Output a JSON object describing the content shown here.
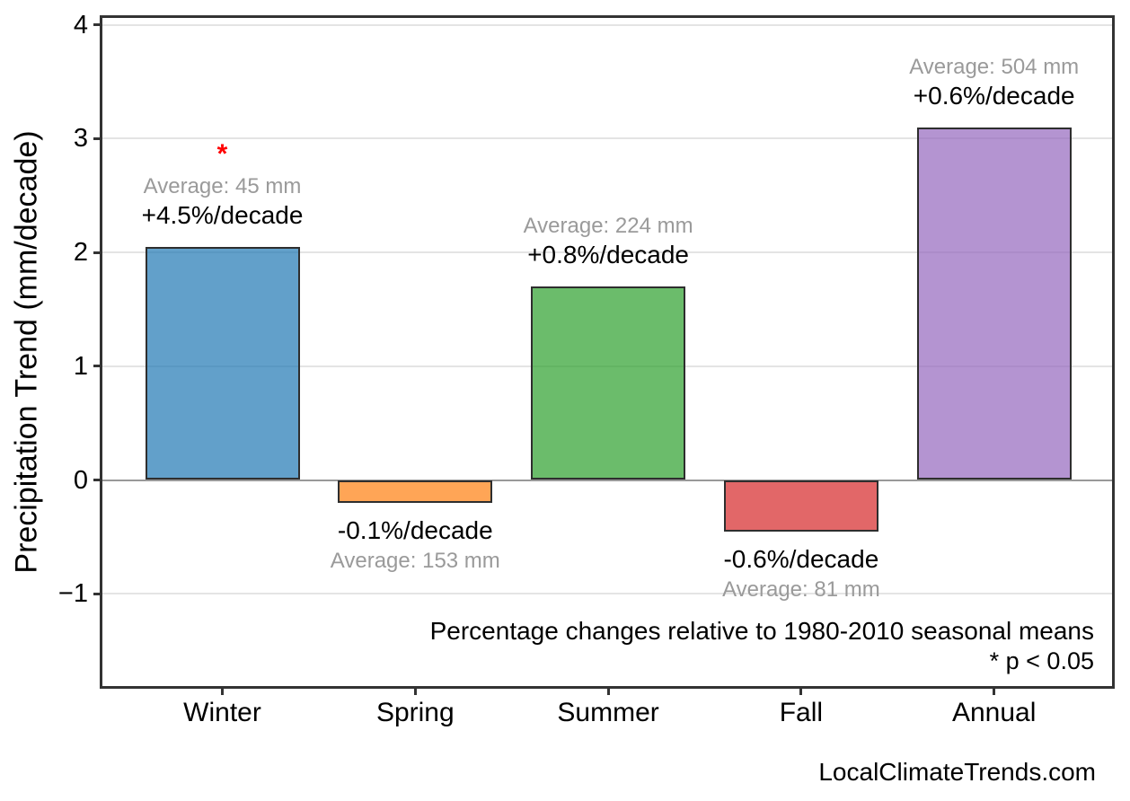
{
  "chart_data": {
    "type": "bar",
    "title": "",
    "ylabel": "Precipitation Trend (mm/decade)",
    "xlabel": "",
    "categories": [
      "Winter",
      "Spring",
      "Summer",
      "Fall",
      "Annual"
    ],
    "values": [
      2.05,
      -0.2,
      1.7,
      -0.45,
      3.1
    ],
    "units": "mm/decade",
    "averages_mm": [
      45,
      153,
      224,
      81,
      504
    ],
    "avg_labels": [
      "Average: 45 mm",
      "Average: 153 mm",
      "Average: 224 mm",
      "Average: 81 mm",
      "Average: 504 mm"
    ],
    "pct_per_decade": [
      4.5,
      -0.1,
      0.8,
      -0.6,
      0.6
    ],
    "pct_labels": [
      "+4.5%/decade",
      "-0.1%/decade",
      "+0.8%/decade",
      "-0.6%/decade",
      "+0.6%/decade"
    ],
    "significant": [
      true,
      false,
      false,
      false,
      false
    ],
    "significance_marker": "*",
    "significance_color": "#ff0000",
    "bar_fill_colors": [
      "rgba(31,119,180,0.7)",
      "rgba(255,127,14,0.7)",
      "rgba(44,160,44,0.7)",
      "rgba(214,39,40,0.7)",
      "rgba(148,103,189,0.7)"
    ],
    "bar_edge_color": "#2e2e2e",
    "yticks": [
      4,
      3,
      2,
      1,
      0,
      -1
    ],
    "ytick_labels": [
      "4",
      "3",
      "2",
      "1",
      "0",
      "−1"
    ],
    "ylim": [
      -1.81,
      4.07
    ],
    "grid": "horizontal",
    "grid_color": "#e4e4e4",
    "zero_line_color": "#999999",
    "avg_label_color": "#9a9a9a",
    "pct_label_color": "#000000",
    "legend": "none",
    "notes": [
      "Percentage changes relative to 1980-2010 seasonal means",
      "* p < 0.05"
    ]
  },
  "footer": {
    "watermark": "LocalClimateTrends.com"
  }
}
